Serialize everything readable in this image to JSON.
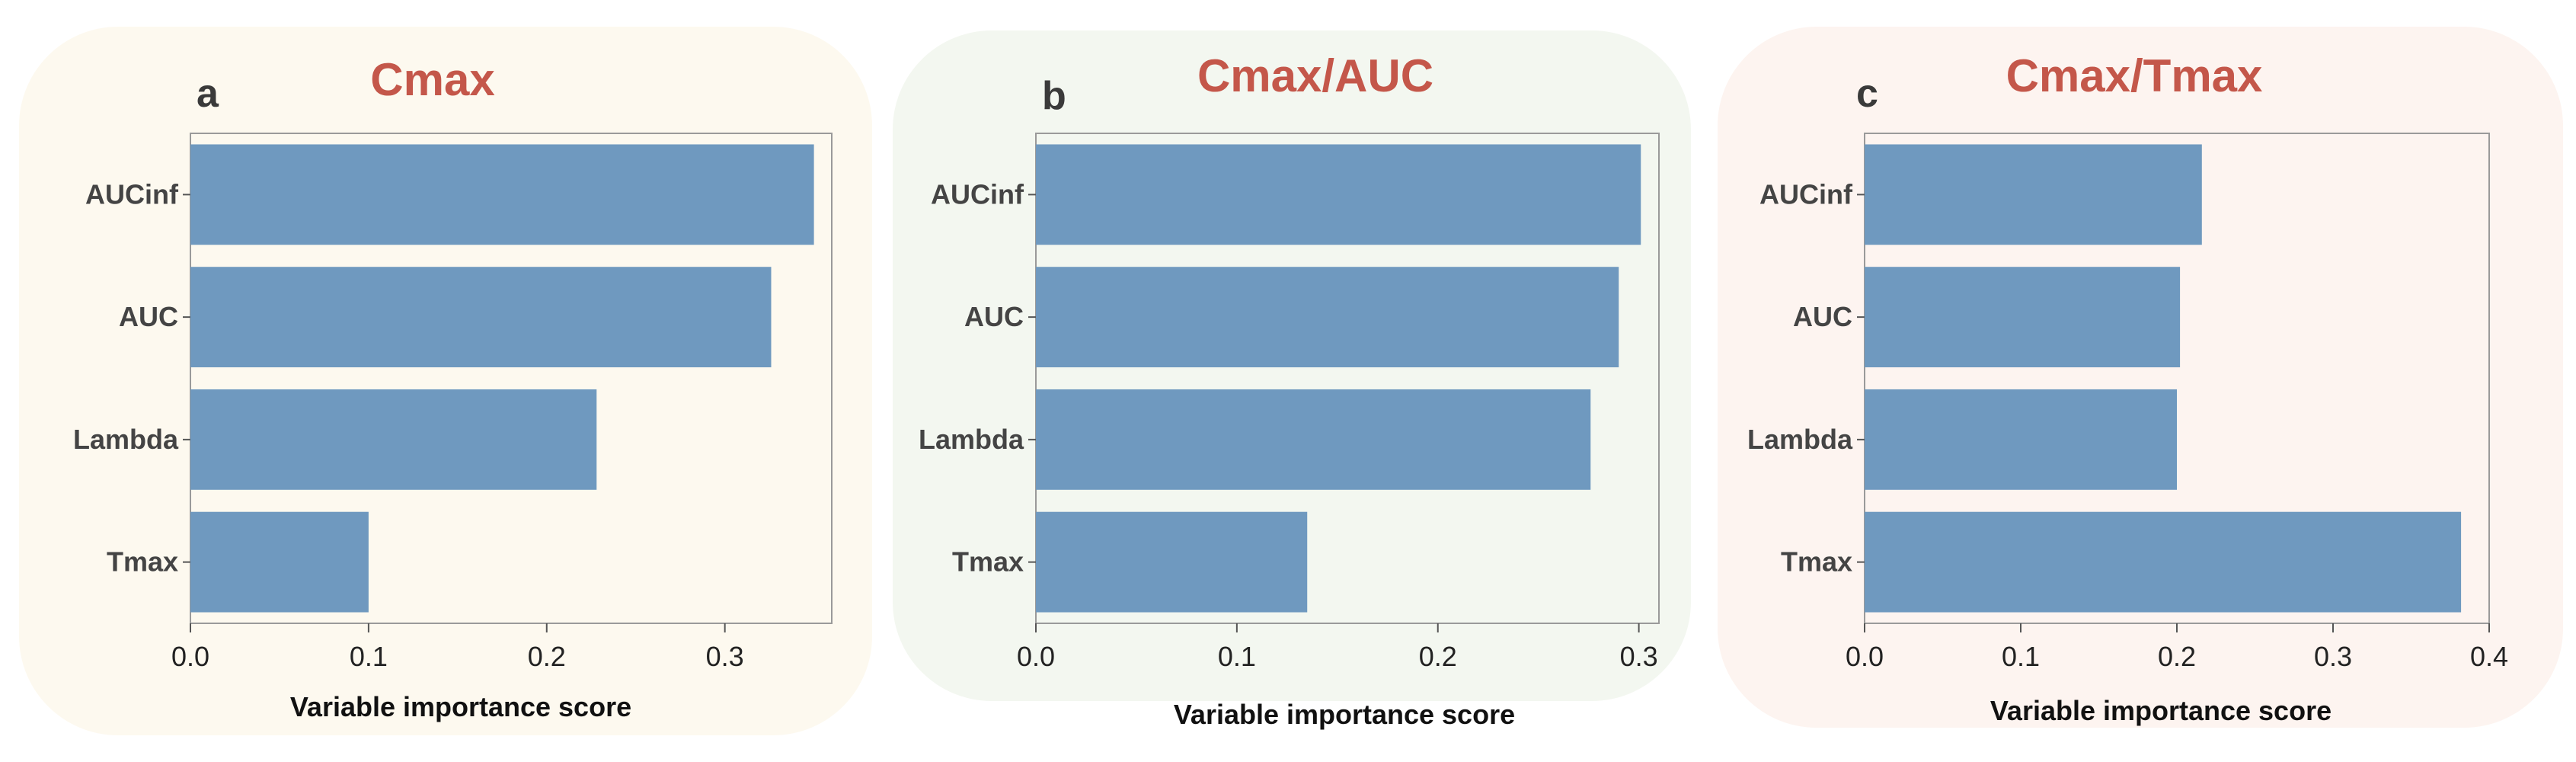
{
  "chart_data": [
    {
      "type": "bar",
      "panel_letter": "a",
      "title": "Cmax",
      "categories": [
        "AUCinf",
        "AUC",
        "Lambda",
        "Tmax"
      ],
      "values": [
        0.35,
        0.326,
        0.228,
        0.1
      ],
      "xlabel": "Variable  importance score",
      "xlim": [
        0,
        0.36
      ],
      "xticks": [
        0.0,
        0.1,
        0.2,
        0.3
      ],
      "xtick_labels": [
        "0.0",
        "0.1",
        "0.2",
        "0.3"
      ],
      "bar_color": "#6f99bf"
    },
    {
      "type": "bar",
      "panel_letter": "b",
      "title": "Cmax/AUC",
      "categories": [
        "AUCinf",
        "AUC",
        "Lambda",
        "Tmax"
      ],
      "values": [
        0.301,
        0.29,
        0.276,
        0.135
      ],
      "xlabel": "Variable  importance score",
      "xlim": [
        0,
        0.31
      ],
      "xticks": [
        0.0,
        0.1,
        0.2,
        0.3
      ],
      "xtick_labels": [
        "0.0",
        "0.1",
        "0.2",
        "0.3"
      ],
      "bar_color": "#6f99bf"
    },
    {
      "type": "bar",
      "panel_letter": "c",
      "title": "Cmax/Tmax",
      "categories": [
        "AUCinf",
        "AUC",
        "Lambda",
        "Tmax"
      ],
      "values": [
        0.216,
        0.202,
        0.2,
        0.382
      ],
      "xlabel": "Variable  importance score",
      "xlim": [
        0,
        0.4
      ],
      "xticks": [
        0.0,
        0.1,
        0.2,
        0.3,
        0.4
      ],
      "xtick_labels": [
        "0.0",
        "0.1",
        "0.2",
        "0.3",
        "0.4"
      ],
      "bar_color": "#6f99bf"
    }
  ]
}
